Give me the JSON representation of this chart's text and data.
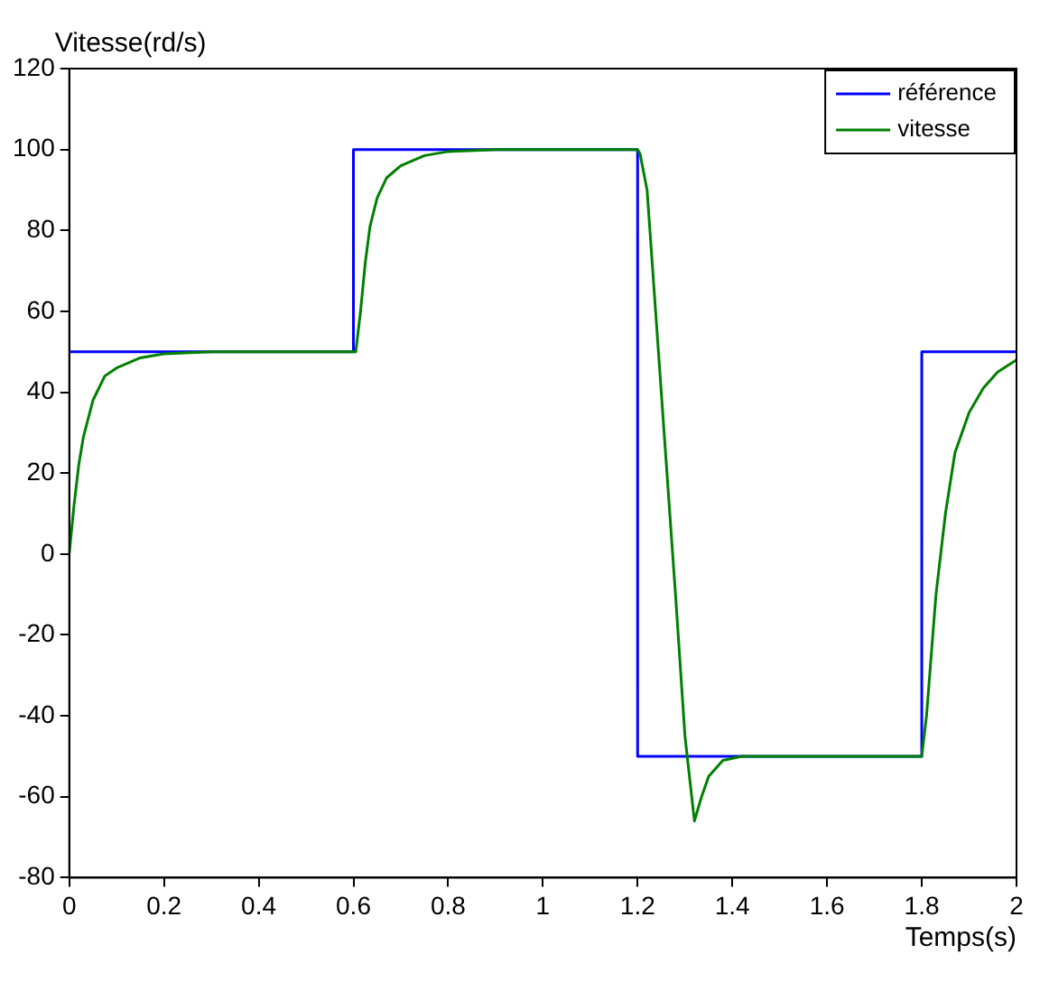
{
  "chart_data": {
    "type": "line",
    "xlabel": "Temps(s)",
    "ylabel": "Vitesse(rd/s)",
    "xlim": [
      0,
      2
    ],
    "xticks": [
      0,
      0.2,
      0.4,
      0.6,
      0.8,
      1,
      1.2,
      1.4,
      1.6,
      1.8,
      2
    ],
    "ylim": [
      -80,
      120
    ],
    "yticks": [
      -80,
      -60,
      -40,
      -20,
      0,
      20,
      40,
      60,
      80,
      100,
      120
    ],
    "grid": false,
    "legend": "top right",
    "marker": "none",
    "line_style": "solid",
    "series": [
      {
        "name": "référence",
        "color": "#0000ff",
        "x": [
          0,
          0.6,
          0.6,
          1.2,
          1.2,
          1.8,
          1.8,
          2
        ],
        "values": [
          50,
          50,
          100,
          100,
          -50,
          -50,
          50,
          50
        ]
      },
      {
        "name": "vitesse",
        "color": "#008000",
        "x": [
          0,
          0.01,
          0.02,
          0.03,
          0.05,
          0.075,
          0.1,
          0.15,
          0.2,
          0.3,
          0.6,
          0.605,
          0.615,
          0.625,
          0.635,
          0.65,
          0.67,
          0.7,
          0.75,
          0.8,
          0.9,
          1.2,
          1.205,
          1.22,
          1.25,
          1.28,
          1.3,
          1.32,
          1.335,
          1.35,
          1.38,
          1.42,
          1.8,
          1.81,
          1.83,
          1.85,
          1.87,
          1.9,
          1.93,
          1.96,
          2
        ],
        "values": [
          0,
          12,
          22,
          29,
          38,
          44,
          46,
          48.5,
          49.5,
          50,
          50,
          50,
          60,
          72,
          81,
          88,
          93,
          96,
          98.5,
          99.5,
          100,
          100,
          99,
          90,
          40,
          -10,
          -45,
          -66,
          -60,
          -55,
          -51,
          -50,
          -50,
          -40,
          -10,
          10,
          25,
          35,
          41,
          45,
          48
        ]
      }
    ]
  }
}
